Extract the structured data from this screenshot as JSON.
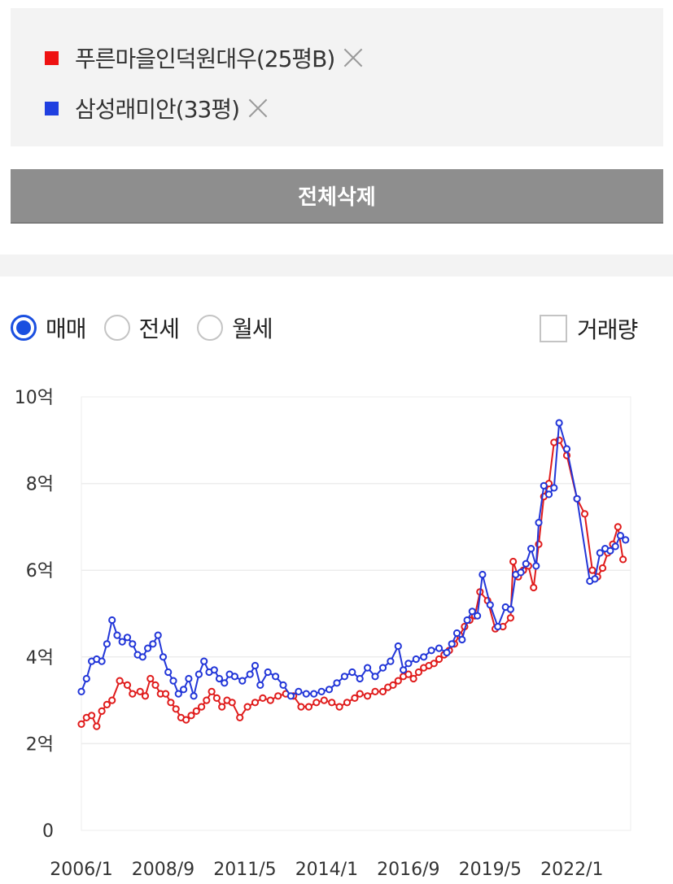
{
  "compare_list": {
    "items": [
      {
        "label": "푸른마을인덕원대우(25평B)",
        "color": "#ee1111"
      },
      {
        "label": "삼성래미안(33평)",
        "color": "#1f3fe0"
      }
    ]
  },
  "clear_all_label": "전체삭제",
  "deal_types": [
    {
      "label": "매매",
      "checked": true
    },
    {
      "label": "전세",
      "checked": false
    },
    {
      "label": "월세",
      "checked": false
    }
  ],
  "volume_toggle": {
    "label": "거래량",
    "checked": false
  },
  "chart_data": {
    "type": "line",
    "ylim": [
      0,
      10
    ],
    "y_ticks": [
      0,
      2,
      4,
      6,
      8,
      10
    ],
    "y_tick_labels": [
      "0",
      "2억",
      "4억",
      "6억",
      "8억",
      "10억"
    ],
    "x_ticks": [
      "2006/1",
      "2008/9",
      "2011/5",
      "2014/1",
      "2016/9",
      "2019/5",
      "2022/1"
    ],
    "grid": true,
    "series": [
      {
        "name": "푸른마을인덕원대우(25평B)",
        "color": "#e01c1c",
        "points": [
          [
            "2006/1",
            2.45
          ],
          [
            "2006/3",
            2.6
          ],
          [
            "2006/5",
            2.65
          ],
          [
            "2006/7",
            2.4
          ],
          [
            "2006/9",
            2.75
          ],
          [
            "2006/11",
            2.9
          ],
          [
            "2007/1",
            3.0
          ],
          [
            "2007/4",
            3.45
          ],
          [
            "2007/7",
            3.35
          ],
          [
            "2007/9",
            3.15
          ],
          [
            "2007/12",
            3.2
          ],
          [
            "2008/2",
            3.1
          ],
          [
            "2008/4",
            3.5
          ],
          [
            "2008/6",
            3.35
          ],
          [
            "2008/8",
            3.15
          ],
          [
            "2008/10",
            3.15
          ],
          [
            "2008/12",
            2.95
          ],
          [
            "2009/2",
            2.8
          ],
          [
            "2009/4",
            2.6
          ],
          [
            "2009/6",
            2.55
          ],
          [
            "2009/8",
            2.65
          ],
          [
            "2009/10",
            2.75
          ],
          [
            "2009/12",
            2.85
          ],
          [
            "2010/2",
            3.0
          ],
          [
            "2010/4",
            3.2
          ],
          [
            "2010/6",
            3.05
          ],
          [
            "2010/8",
            2.85
          ],
          [
            "2010/10",
            3.0
          ],
          [
            "2010/12",
            2.95
          ],
          [
            "2011/3",
            2.6
          ],
          [
            "2011/6",
            2.85
          ],
          [
            "2011/9",
            2.95
          ],
          [
            "2011/12",
            3.05
          ],
          [
            "2012/3",
            3.0
          ],
          [
            "2012/6",
            3.1
          ],
          [
            "2012/9",
            3.15
          ],
          [
            "2012/12",
            3.1
          ],
          [
            "2013/3",
            2.85
          ],
          [
            "2013/6",
            2.85
          ],
          [
            "2013/9",
            2.95
          ],
          [
            "2013/12",
            3.0
          ],
          [
            "2014/3",
            2.95
          ],
          [
            "2014/6",
            2.85
          ],
          [
            "2014/9",
            2.95
          ],
          [
            "2014/12",
            3.05
          ],
          [
            "2015/2",
            3.15
          ],
          [
            "2015/5",
            3.1
          ],
          [
            "2015/8",
            3.2
          ],
          [
            "2015/11",
            3.2
          ],
          [
            "2016/1",
            3.3
          ],
          [
            "2016/3",
            3.35
          ],
          [
            "2016/5",
            3.45
          ],
          [
            "2016/7",
            3.55
          ],
          [
            "2016/9",
            3.6
          ],
          [
            "2016/11",
            3.5
          ],
          [
            "2017/1",
            3.65
          ],
          [
            "2017/3",
            3.75
          ],
          [
            "2017/5",
            3.8
          ],
          [
            "2017/7",
            3.85
          ],
          [
            "2017/9",
            3.95
          ],
          [
            "2017/11",
            4.05
          ],
          [
            "2018/1",
            4.15
          ],
          [
            "2018/3",
            4.3
          ],
          [
            "2018/5",
            4.5
          ],
          [
            "2018/7",
            4.7
          ],
          [
            "2018/9",
            4.85
          ],
          [
            "2018/11",
            4.95
          ],
          [
            "2019/1",
            5.5
          ],
          [
            "2019/4",
            5.3
          ],
          [
            "2019/7",
            4.65
          ],
          [
            "2019/10",
            4.7
          ],
          [
            "2020/1",
            4.9
          ],
          [
            "2020/2",
            6.2
          ],
          [
            "2020/4",
            5.85
          ],
          [
            "2020/6",
            6.0
          ],
          [
            "2020/8",
            6.1
          ],
          [
            "2020/10",
            5.6
          ],
          [
            "2020/12",
            6.6
          ],
          [
            "2021/2",
            7.7
          ],
          [
            "2021/4",
            8.0
          ],
          [
            "2021/6",
            8.95
          ],
          [
            "2021/8",
            9.0
          ],
          [
            "2021/11",
            8.65
          ],
          [
            "2022/3",
            7.65
          ],
          [
            "2022/6",
            7.3
          ],
          [
            "2022/9",
            6.0
          ],
          [
            "2022/11",
            5.85
          ],
          [
            "2023/1",
            6.05
          ],
          [
            "2023/3",
            6.4
          ],
          [
            "2023/5",
            6.6
          ],
          [
            "2023/7",
            7.0
          ],
          [
            "2023/9",
            6.25
          ]
        ]
      },
      {
        "name": "삼성래미안(33평)",
        "color": "#2236d8",
        "points": [
          [
            "2006/1",
            3.2
          ],
          [
            "2006/3",
            3.5
          ],
          [
            "2006/5",
            3.9
          ],
          [
            "2006/7",
            3.95
          ],
          [
            "2006/9",
            3.9
          ],
          [
            "2006/11",
            4.3
          ],
          [
            "2007/1",
            4.85
          ],
          [
            "2007/3",
            4.5
          ],
          [
            "2007/5",
            4.35
          ],
          [
            "2007/7",
            4.45
          ],
          [
            "2007/9",
            4.3
          ],
          [
            "2007/11",
            4.05
          ],
          [
            "2008/1",
            4.0
          ],
          [
            "2008/3",
            4.2
          ],
          [
            "2008/5",
            4.3
          ],
          [
            "2008/7",
            4.5
          ],
          [
            "2008/9",
            4.0
          ],
          [
            "2008/11",
            3.65
          ],
          [
            "2009/1",
            3.45
          ],
          [
            "2009/3",
            3.15
          ],
          [
            "2009/5",
            3.25
          ],
          [
            "2009/7",
            3.5
          ],
          [
            "2009/9",
            3.1
          ],
          [
            "2009/11",
            3.6
          ],
          [
            "2010/1",
            3.9
          ],
          [
            "2010/3",
            3.65
          ],
          [
            "2010/5",
            3.7
          ],
          [
            "2010/7",
            3.5
          ],
          [
            "2010/9",
            3.4
          ],
          [
            "2010/11",
            3.6
          ],
          [
            "2011/1",
            3.55
          ],
          [
            "2011/4",
            3.45
          ],
          [
            "2011/7",
            3.6
          ],
          [
            "2011/9",
            3.8
          ],
          [
            "2011/11",
            3.35
          ],
          [
            "2012/2",
            3.65
          ],
          [
            "2012/5",
            3.55
          ],
          [
            "2012/8",
            3.35
          ],
          [
            "2012/11",
            3.1
          ],
          [
            "2013/2",
            3.2
          ],
          [
            "2013/5",
            3.15
          ],
          [
            "2013/8",
            3.15
          ],
          [
            "2013/11",
            3.2
          ],
          [
            "2014/2",
            3.25
          ],
          [
            "2014/5",
            3.4
          ],
          [
            "2014/8",
            3.55
          ],
          [
            "2014/11",
            3.65
          ],
          [
            "2015/2",
            3.5
          ],
          [
            "2015/5",
            3.75
          ],
          [
            "2015/8",
            3.55
          ],
          [
            "2015/11",
            3.75
          ],
          [
            "2016/2",
            3.9
          ],
          [
            "2016/5",
            4.25
          ],
          [
            "2016/7",
            3.7
          ],
          [
            "2016/9",
            3.85
          ],
          [
            "2016/12",
            3.95
          ],
          [
            "2017/3",
            4.0
          ],
          [
            "2017/6",
            4.15
          ],
          [
            "2017/9",
            4.2
          ],
          [
            "2017/12",
            4.1
          ],
          [
            "2018/2",
            4.3
          ],
          [
            "2018/4",
            4.55
          ],
          [
            "2018/6",
            4.4
          ],
          [
            "2018/8",
            4.85
          ],
          [
            "2018/10",
            5.05
          ],
          [
            "2018/12",
            4.95
          ],
          [
            "2019/2",
            5.9
          ],
          [
            "2019/5",
            5.2
          ],
          [
            "2019/8",
            4.7
          ],
          [
            "2019/11",
            5.15
          ],
          [
            "2020/1",
            5.1
          ],
          [
            "2020/3",
            5.9
          ],
          [
            "2020/5",
            5.95
          ],
          [
            "2020/7",
            6.15
          ],
          [
            "2020/9",
            6.5
          ],
          [
            "2020/11",
            6.1
          ],
          [
            "2020/12",
            7.1
          ],
          [
            "2021/2",
            7.95
          ],
          [
            "2021/4",
            7.75
          ],
          [
            "2021/6",
            7.9
          ],
          [
            "2021/8",
            9.4
          ],
          [
            "2021/11",
            8.8
          ],
          [
            "2022/3",
            7.65
          ],
          [
            "2022/8",
            5.75
          ],
          [
            "2022/10",
            5.8
          ],
          [
            "2022/12",
            6.4
          ],
          [
            "2023/2",
            6.5
          ],
          [
            "2023/4",
            6.45
          ],
          [
            "2023/6",
            6.55
          ],
          [
            "2023/8",
            6.8
          ],
          [
            "2023/10",
            6.7
          ]
        ]
      }
    ]
  }
}
